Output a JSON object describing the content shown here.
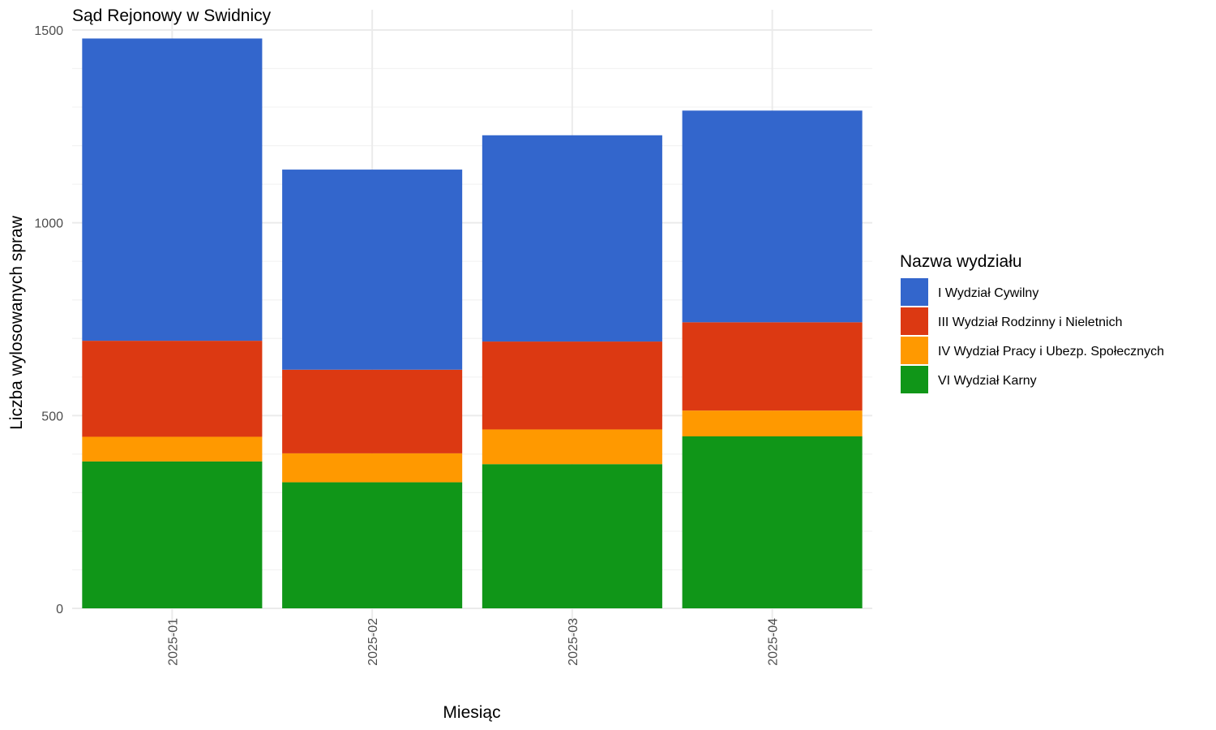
{
  "chart_data": {
    "type": "bar",
    "stacked": true,
    "title": "Sąd Rejonowy w Swidnicy",
    "xlabel": "Miesiąc",
    "ylabel": "Liczba wylosowanych spraw",
    "categories": [
      "2025-01",
      "2025-02",
      "2025-03",
      "2025-04"
    ],
    "ylim": [
      0,
      1500
    ],
    "yticks": [
      0,
      500,
      1000,
      1500
    ],
    "grid": true,
    "legend": {
      "title": "Nazwa wydziału",
      "position": "right"
    },
    "series": [
      {
        "name": "VI Wydział Karny",
        "color": "#109618",
        "values": [
          381,
          327,
          374,
          446
        ]
      },
      {
        "name": "IV Wydział Pracy i Ubezp. Społecznych",
        "color": "#FF9900",
        "values": [
          64,
          75,
          90,
          67
        ]
      },
      {
        "name": "III Wydział Rodzinny i Nieletnich",
        "color": "#DC3912",
        "values": [
          249,
          217,
          228,
          229
        ]
      },
      {
        "name": "I Wydział Cywilny",
        "color": "#3366CC",
        "values": [
          784,
          519,
          535,
          549
        ]
      }
    ],
    "legend_order": [
      "I Wydział Cywilny",
      "III Wydział Rodzinny i Nieletnich",
      "IV Wydział Pracy i Ubezp. Społecznych",
      "VI Wydział Karny"
    ]
  }
}
